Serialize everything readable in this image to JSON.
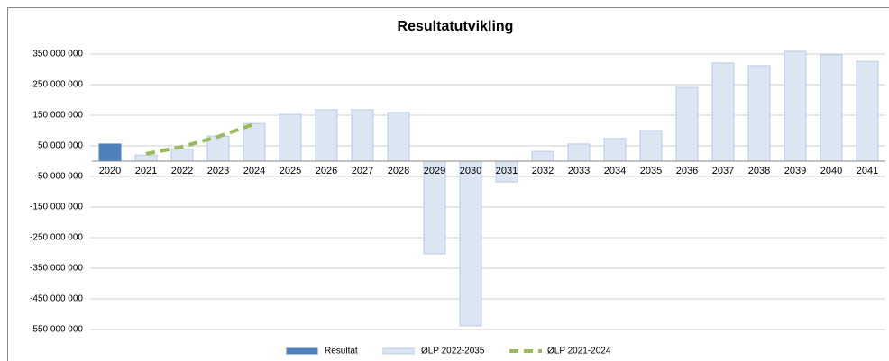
{
  "chart_data": {
    "type": "bar",
    "title": "Resultatutvikling",
    "categories": [
      "2020",
      "2021",
      "2022",
      "2023",
      "2024",
      "2025",
      "2026",
      "2027",
      "2028",
      "2029",
      "2030",
      "2031",
      "2032",
      "2033",
      "2034",
      "2035",
      "2036",
      "2037",
      "2038",
      "2039",
      "2040",
      "2041"
    ],
    "series": [
      {
        "name": "Resultat",
        "type": "bar",
        "color": "#4f81bd",
        "values": [
          56000000,
          null,
          null,
          null,
          null,
          null,
          null,
          null,
          null,
          null,
          null,
          null,
          null,
          null,
          null,
          null,
          null,
          null,
          null,
          null,
          null,
          null
        ]
      },
      {
        "name": "ØLP 2022-2035",
        "type": "bar",
        "color": "#dce6f2",
        "values": [
          null,
          20000000,
          40000000,
          82000000,
          123000000,
          153000000,
          168000000,
          168000000,
          159000000,
          -303000000,
          -538000000,
          -68000000,
          32000000,
          56000000,
          74000000,
          100000000,
          241000000,
          321000000,
          312000000,
          359000000,
          347000000,
          326000000
        ]
      },
      {
        "name": "ØLP 2021-2024",
        "type": "line",
        "color": "#9bbb59",
        "values": [
          null,
          24000000,
          47000000,
          80000000,
          121000000,
          null,
          null,
          null,
          null,
          null,
          null,
          null,
          null,
          null,
          null,
          null,
          null,
          null,
          null,
          null,
          null,
          null
        ]
      }
    ],
    "ylim": [
      -575000000,
      375000000
    ],
    "yticks": [
      {
        "value": 350000000,
        "label": "350 000 000"
      },
      {
        "value": 250000000,
        "label": "250 000 000"
      },
      {
        "value": 150000000,
        "label": "150 000 000"
      },
      {
        "value": 50000000,
        "label": "50 000 000"
      },
      {
        "value": -50000000,
        "label": "-50 000 000"
      },
      {
        "value": -150000000,
        "label": "-150 000 000"
      },
      {
        "value": -250000000,
        "label": "-250 000 000"
      },
      {
        "value": -350000000,
        "label": "-350 000 000"
      },
      {
        "value": -450000000,
        "label": "-450 000 000"
      },
      {
        "value": -550000000,
        "label": "-550 000 000"
      }
    ],
    "grid": true,
    "legend": "bottom"
  }
}
